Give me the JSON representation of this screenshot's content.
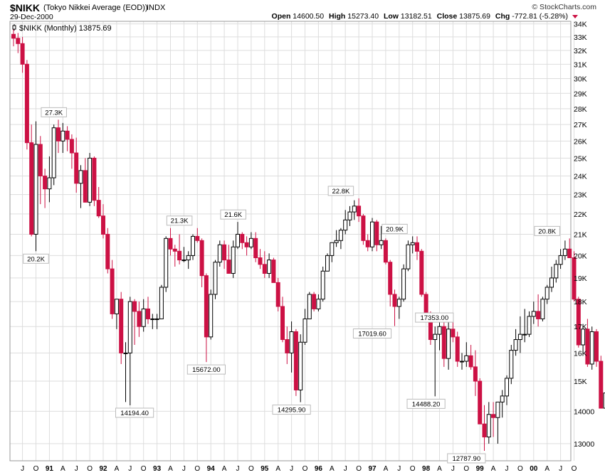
{
  "header": {
    "symbol": "$NIKK",
    "name": "(Tokyo Nikkei Average (EOD))",
    "exchange": "INDX",
    "date": "29-Dec-2000",
    "brand": "© StockCharts.com",
    "open_label": "Open",
    "open": "14600.50",
    "high_label": "High",
    "high": "15273.40",
    "low_label": "Low",
    "low": "13182.51",
    "close_label": "Close",
    "close": "13875.69",
    "chg_label": "Chg",
    "chg": "-772.81 (-5.28%)"
  },
  "colors": {
    "up": "#000000",
    "down": "#cc1144",
    "grid": "#dddddd",
    "frame": "#999999"
  },
  "chart_data": {
    "type": "candlestick",
    "interval": "monthly",
    "legend": "$NIKK (Monthly) 13875.69",
    "y_scale": "log",
    "ylim": [
      12500,
      34200
    ],
    "y_ticks": [
      13000,
      14000,
      15000,
      16000,
      17000,
      18000,
      19000,
      20000,
      21000,
      22000,
      23000,
      24000,
      25000,
      26000,
      27000,
      28000,
      29000,
      30000,
      31000,
      32000,
      33000,
      34000
    ],
    "x_labels": [
      "J",
      "O",
      "91",
      "A",
      "J",
      "O",
      "92",
      "A",
      "J",
      "O",
      "93",
      "A",
      "J",
      "O",
      "94",
      "A",
      "J",
      "O",
      "95",
      "A",
      "J",
      "O",
      "96",
      "A",
      "J",
      "O",
      "97",
      "A",
      "J",
      "O",
      "98",
      "A",
      "J",
      "O",
      "99",
      "A",
      "J",
      "O",
      "00",
      "A",
      "J",
      "O"
    ],
    "x_label_months": [
      "1990-07",
      "1990-10",
      "1991-01",
      "1991-04",
      "1991-07",
      "1991-10",
      "1992-01",
      "1992-04",
      "1992-07",
      "1992-10",
      "1993-01",
      "1993-04",
      "1993-07",
      "1993-10",
      "1994-01",
      "1994-04",
      "1994-07",
      "1994-10",
      "1995-01",
      "1995-04",
      "1995-07",
      "1995-10",
      "1996-01",
      "1996-04",
      "1996-07",
      "1996-10",
      "1997-01",
      "1997-04",
      "1997-07",
      "1997-10",
      "1998-01",
      "1998-04",
      "1998-07",
      "1998-10",
      "1999-01",
      "1999-04",
      "1999-07",
      "1999-10",
      "2000-01",
      "2000-04",
      "2000-07",
      "2000-10"
    ],
    "first_month": "1990-05",
    "candles": [
      [
        33200,
        33600,
        32300,
        32900
      ],
      [
        32900,
        33300,
        31800,
        32500
      ],
      [
        32500,
        33000,
        30400,
        31000
      ],
      [
        31000,
        31300,
        25500,
        25900
      ],
      [
        25900,
        27000,
        20900,
        21000
      ],
      [
        21000,
        27200,
        20200,
        25800
      ],
      [
        25800,
        26300,
        22500,
        24000
      ],
      [
        24000,
        24400,
        22300,
        23300
      ],
      [
        23300,
        25100,
        22600,
        23900
      ],
      [
        23900,
        27000,
        23500,
        26800
      ],
      [
        26800,
        27300,
        25300,
        26000
      ],
      [
        26000,
        27100,
        25300,
        26600
      ],
      [
        26600,
        26900,
        25400,
        26100
      ],
      [
        26100,
        26400,
        24400,
        25300
      ],
      [
        25300,
        26200,
        23100,
        23600
      ],
      [
        23600,
        24600,
        22300,
        24300
      ],
      [
        24300,
        25000,
        22600,
        22600
      ],
      [
        22600,
        25300,
        22400,
        25000
      ],
      [
        25000,
        25100,
        22400,
        22700
      ],
      [
        22700,
        23400,
        21800,
        21900
      ],
      [
        21900,
        22500,
        20800,
        21000
      ],
      [
        21000,
        21300,
        19200,
        19400
      ],
      [
        19400,
        19800,
        17300,
        17500
      ],
      [
        17500,
        18100,
        16900,
        18100
      ],
      [
        18100,
        18400,
        15600,
        16000
      ],
      [
        16000,
        16400,
        14300,
        16000
      ],
      [
        16000,
        18200,
        14194.4,
        18000
      ],
      [
        18000,
        18100,
        16300,
        17600
      ],
      [
        17600,
        18000,
        16600,
        17000
      ],
      [
        17000,
        18100,
        16800,
        17700
      ],
      [
        17700,
        18200,
        17100,
        17300
      ],
      [
        17300,
        17500,
        16900,
        17300
      ],
      [
        17300,
        17500,
        16900,
        17300
      ],
      [
        17300,
        18700,
        17300,
        18600
      ],
      [
        18600,
        20900,
        18400,
        20800
      ],
      [
        20800,
        21300,
        20000,
        20300
      ],
      [
        20300,
        20500,
        19500,
        20200
      ],
      [
        20200,
        21000,
        19600,
        19800
      ],
      [
        19800,
        20400,
        19700,
        19800
      ],
      [
        19800,
        20200,
        19400,
        20000
      ],
      [
        20000,
        21000,
        19800,
        20900
      ],
      [
        20900,
        21300,
        20600,
        20700
      ],
      [
        20700,
        20800,
        18600,
        19100
      ],
      [
        19100,
        19200,
        15672,
        16600
      ],
      [
        16600,
        18500,
        16500,
        18300
      ],
      [
        18300,
        19800,
        18100,
        19700
      ],
      [
        19700,
        20700,
        19500,
        20500
      ],
      [
        20500,
        20700,
        19400,
        19800
      ],
      [
        19800,
        20500,
        19200,
        19200
      ],
      [
        19200,
        20700,
        19000,
        20400
      ],
      [
        20400,
        21600,
        20300,
        21000
      ],
      [
        21000,
        21100,
        20300,
        20600
      ],
      [
        20600,
        20900,
        20000,
        20400
      ],
      [
        20400,
        21100,
        20300,
        20800
      ],
      [
        20800,
        21100,
        19700,
        19900
      ],
      [
        19900,
        20300,
        19400,
        19600
      ],
      [
        19600,
        20200,
        19000,
        19200
      ],
      [
        19200,
        20100,
        19000,
        19800
      ],
      [
        19800,
        19900,
        18800,
        18800
      ],
      [
        18800,
        19000,
        17600,
        17800
      ],
      [
        17800,
        18200,
        16400,
        16500
      ],
      [
        16500,
        17000,
        15600,
        16000
      ],
      [
        16000,
        17200,
        15300,
        16800
      ],
      [
        16800,
        16900,
        14500,
        14700
      ],
      [
        14700,
        16700,
        14295.9,
        16400
      ],
      [
        16400,
        17700,
        16300,
        17300
      ],
      [
        17300,
        18400,
        17300,
        18300
      ],
      [
        18300,
        18400,
        17600,
        17700
      ],
      [
        17700,
        18300,
        17600,
        18100
      ],
      [
        18100,
        19500,
        18000,
        19300
      ],
      [
        19300,
        20100,
        19300,
        20000
      ],
      [
        20000,
        20600,
        19700,
        20600
      ],
      [
        20600,
        21200,
        20400,
        20700
      ],
      [
        20700,
        21300,
        20300,
        21200
      ],
      [
        21200,
        22200,
        21000,
        21700
      ],
      [
        21700,
        22400,
        21400,
        22100
      ],
      [
        22100,
        22700,
        21700,
        22400
      ],
      [
        22400,
        22800,
        21600,
        21900
      ],
      [
        21900,
        22000,
        20500,
        20700
      ],
      [
        20700,
        21000,
        20200,
        20400
      ],
      [
        20400,
        21800,
        20200,
        21600
      ],
      [
        21600,
        21700,
        20200,
        20500
      ],
      [
        20500,
        21400,
        20300,
        20700
      ],
      [
        20700,
        20800,
        19600,
        19700
      ],
      [
        19700,
        19800,
        17800,
        18300
      ],
      [
        18300,
        18500,
        17019.6,
        17800
      ],
      [
        17800,
        18200,
        17300,
        18100
      ],
      [
        18100,
        19600,
        18000,
        19400
      ],
      [
        19400,
        20700,
        19300,
        20500
      ],
      [
        20500,
        20900,
        20100,
        20600
      ],
      [
        20600,
        20900,
        19800,
        20200
      ],
      [
        20200,
        20300,
        18200,
        18300
      ],
      [
        18300,
        18400,
        17400,
        17500
      ],
      [
        17500,
        17600,
        16300,
        16500
      ],
      [
        16500,
        17000,
        14488.2,
        16700
      ],
      [
        16700,
        17500,
        16100,
        17000
      ],
      [
        17000,
        17400,
        15500,
        15800
      ],
      [
        15800,
        17200,
        15400,
        16900
      ],
      [
        16900,
        17353,
        16400,
        16600
      ],
      [
        16600,
        16800,
        15500,
        15700
      ],
      [
        15700,
        16000,
        15400,
        15700
      ],
      [
        15700,
        16400,
        15500,
        15900
      ],
      [
        15900,
        16300,
        15400,
        15500
      ],
      [
        15500,
        16100,
        14500,
        15000
      ],
      [
        15000,
        15100,
        13600,
        13600
      ],
      [
        13600,
        14200,
        12787.9,
        13200
      ],
      [
        13200,
        14300,
        13000,
        13900
      ],
      [
        13900,
        14300,
        13200,
        13800
      ],
      [
        13800,
        14200,
        13000,
        14300
      ],
      [
        14300,
        14700,
        13800,
        14500
      ],
      [
        14500,
        15200,
        14200,
        15100
      ],
      [
        15100,
        16300,
        14900,
        16100
      ],
      [
        16100,
        16900,
        15900,
        16500
      ],
      [
        16500,
        17400,
        16000,
        16700
      ],
      [
        16700,
        17700,
        16400,
        16700
      ],
      [
        16700,
        17600,
        16600,
        17400
      ],
      [
        17400,
        18000,
        17100,
        17600
      ],
      [
        17600,
        18300,
        17000,
        17300
      ],
      [
        17300,
        18200,
        17200,
        18100
      ],
      [
        18100,
        18700,
        17900,
        18600
      ],
      [
        18600,
        19500,
        18400,
        19000
      ],
      [
        19000,
        19800,
        18800,
        19600
      ],
      [
        19600,
        20300,
        19400,
        20000
      ],
      [
        20000,
        20700,
        19800,
        20300
      ],
      [
        20300,
        20800,
        20000,
        19900
      ],
      [
        19900,
        20200,
        18000,
        18100
      ],
      [
        18100,
        18200,
        16200,
        16300
      ],
      [
        16300,
        17100,
        16000,
        16900
      ],
      [
        16900,
        17300,
        15500,
        15600
      ],
      [
        15600,
        17000,
        15400,
        16800
      ],
      [
        16800,
        16900,
        15500,
        15700
      ],
      [
        15700,
        15900,
        14100,
        14100
      ],
      [
        14100,
        15300,
        13700,
        14600
      ],
      [
        14600,
        15273.4,
        13182.51,
        13875.69
      ]
    ],
    "annotations": [
      {
        "month": "1991-02",
        "price": 27300,
        "text": "27.3K",
        "pos": "above"
      },
      {
        "month": "1990-10",
        "price": 20200,
        "text": "20.2K",
        "pos": "below"
      },
      {
        "month": "1992-08",
        "price": 14194.4,
        "text": "14194.40",
        "pos": "below"
      },
      {
        "month": "1993-06",
        "price": 21300,
        "text": "21.3K",
        "pos": "above"
      },
      {
        "month": "1993-12",
        "price": 15672,
        "text": "15672.00",
        "pos": "below"
      },
      {
        "month": "1994-06",
        "price": 21600,
        "text": "21.6K",
        "pos": "above"
      },
      {
        "month": "1995-07",
        "price": 14295.9,
        "text": "14295.90",
        "pos": "below"
      },
      {
        "month": "1996-06",
        "price": 22800,
        "text": "22.8K",
        "pos": "above"
      },
      {
        "month": "1997-01",
        "price": 17019.6,
        "text": "17019.60",
        "pos": "below"
      },
      {
        "month": "1997-06",
        "price": 20900,
        "text": "20.9K",
        "pos": "above"
      },
      {
        "month": "1997-10",
        "price": 17353,
        "text": "17353.00",
        "pos": "right"
      },
      {
        "month": "1998-01",
        "price": 14488.2,
        "text": "14488.20",
        "pos": "below"
      },
      {
        "month": "1998-10",
        "price": 12787.9,
        "text": "12787.90",
        "pos": "below"
      },
      {
        "month": "2000-04",
        "price": 20800,
        "text": "20.8K",
        "pos": "above"
      }
    ]
  }
}
